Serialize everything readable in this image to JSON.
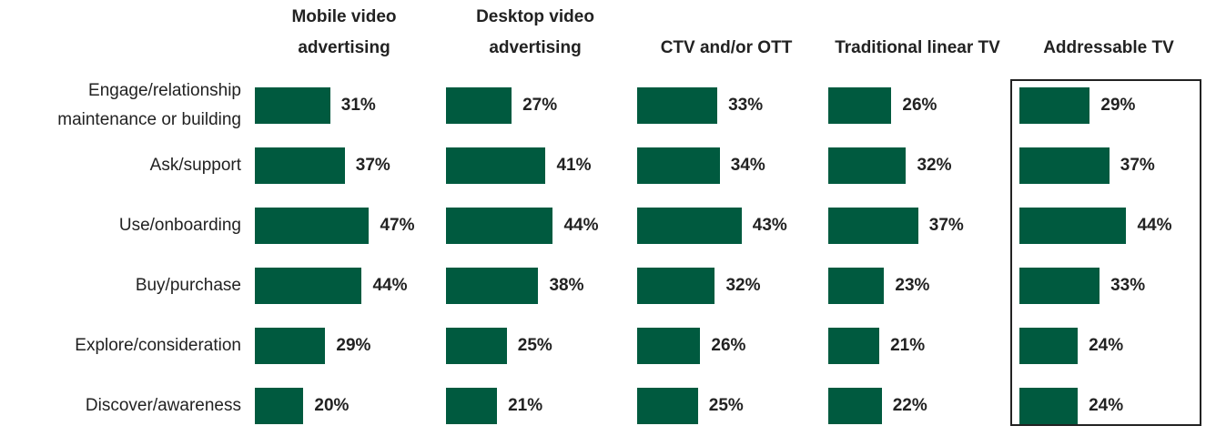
{
  "chart_data": {
    "type": "bar",
    "orientation": "horizontal",
    "categories": [
      "Engage/relationship maintenance or building",
      "Ask/support",
      "Use/onboarding",
      "Buy/purchase",
      "Explore/consideration",
      "Discover/awareness"
    ],
    "series": [
      {
        "name": "Mobile video advertising",
        "color": "#005a3f",
        "values": [
          31,
          37,
          47,
          44,
          29,
          20
        ],
        "value_labels": [
          "31%",
          "37%",
          "47%",
          "44%",
          "29%",
          "20%"
        ]
      },
      {
        "name": "Desktop video advertising",
        "color": "#005a3f",
        "values": [
          27,
          41,
          44,
          38,
          25,
          21
        ],
        "value_labels": [
          "27%",
          "41%",
          "44%",
          "38%",
          "25%",
          "21%"
        ]
      },
      {
        "name": "CTV and/or OTT",
        "color": "#005a3f",
        "values": [
          33,
          34,
          43,
          32,
          26,
          25
        ],
        "value_labels": [
          "33%",
          "34%",
          "43%",
          "32%",
          "26%",
          "25%"
        ]
      },
      {
        "name": "Traditional linear TV",
        "color": "#005a3f",
        "values": [
          26,
          32,
          37,
          23,
          21,
          22
        ],
        "value_labels": [
          "26%",
          "32%",
          "37%",
          "23%",
          "21%",
          "22%"
        ]
      },
      {
        "name": "Addressable TV",
        "color": "#005a3f",
        "values": [
          29,
          37,
          44,
          33,
          24,
          24
        ],
        "value_labels": [
          "29%",
          "37%",
          "44%",
          "33%",
          "24%",
          "24%"
        ]
      }
    ]
  }
}
